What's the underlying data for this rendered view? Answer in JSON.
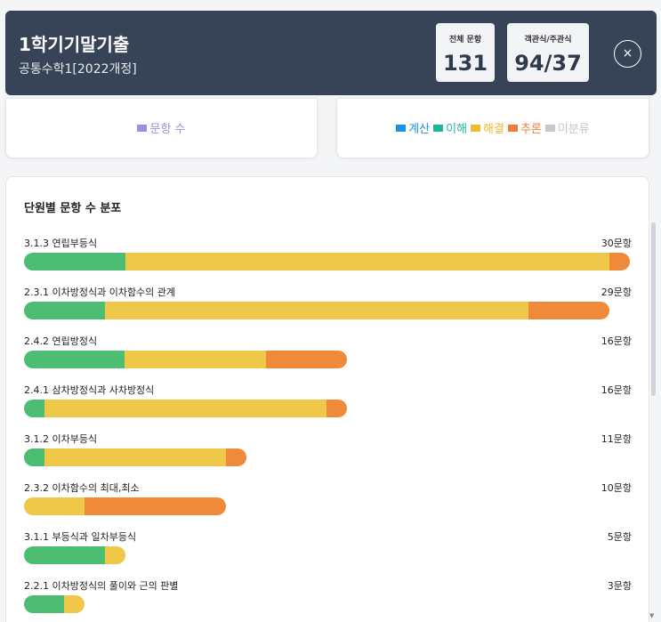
{
  "header": {
    "title": "1학기기말기출",
    "subtitle": "공통수학1[2022개정]",
    "total_label": "전체 문항",
    "total_value": "131",
    "ratio_label": "객관식/주관식",
    "ratio_value": "94/37",
    "close_icon": "×"
  },
  "legend_left": {
    "items": [
      {
        "label": "문항 수",
        "color": "#9b8fe0"
      }
    ]
  },
  "legend_right": {
    "items": [
      {
        "label": "계산",
        "color": "#1e90e8"
      },
      {
        "label": "이해",
        "color": "#1cb89a"
      },
      {
        "label": "해결",
        "color": "#f0b92e"
      },
      {
        "label": "추론",
        "color": "#f07b3a"
      },
      {
        "label": "미분류",
        "color": "#c8c8c8"
      }
    ]
  },
  "distribution": {
    "title": "단원별 문항 수 분포",
    "max_count": 30,
    "colors": {
      "green": "#4dbd74",
      "yellow": "#efc84a",
      "orange": "#ef8a3a"
    },
    "units": [
      {
        "name": "3.1.3 연립부등식",
        "count_text": "30문항",
        "count": 30,
        "segments": [
          5,
          24,
          1
        ]
      },
      {
        "name": "2.3.1 이차방정식과 이차함수의 관계",
        "count_text": "29문항",
        "count": 29,
        "segments": [
          4,
          21,
          4
        ]
      },
      {
        "name": "2.4.2 연립방정식",
        "count_text": "16문항",
        "count": 16,
        "segments": [
          5,
          7,
          4
        ]
      },
      {
        "name": "2.4.1 삼차방정식과 사차방정식",
        "count_text": "16문항",
        "count": 16,
        "segments": [
          1,
          14,
          1
        ]
      },
      {
        "name": "3.1.2 이차부등식",
        "count_text": "11문항",
        "count": 11,
        "segments": [
          1,
          9,
          1
        ]
      },
      {
        "name": "2.3.2 이차함수의 최대,최소",
        "count_text": "10문항",
        "count": 10,
        "segments": [
          0,
          3,
          7
        ]
      },
      {
        "name": "3.1.1 부등식과 일차부등식",
        "count_text": "5문항",
        "count": 5,
        "segments": [
          4,
          1,
          0
        ]
      },
      {
        "name": "2.2.1 이차방정식의 풀이와 근의 판별",
        "count_text": "3문항",
        "count": 3,
        "segments": [
          2,
          1,
          0
        ]
      }
    ]
  }
}
